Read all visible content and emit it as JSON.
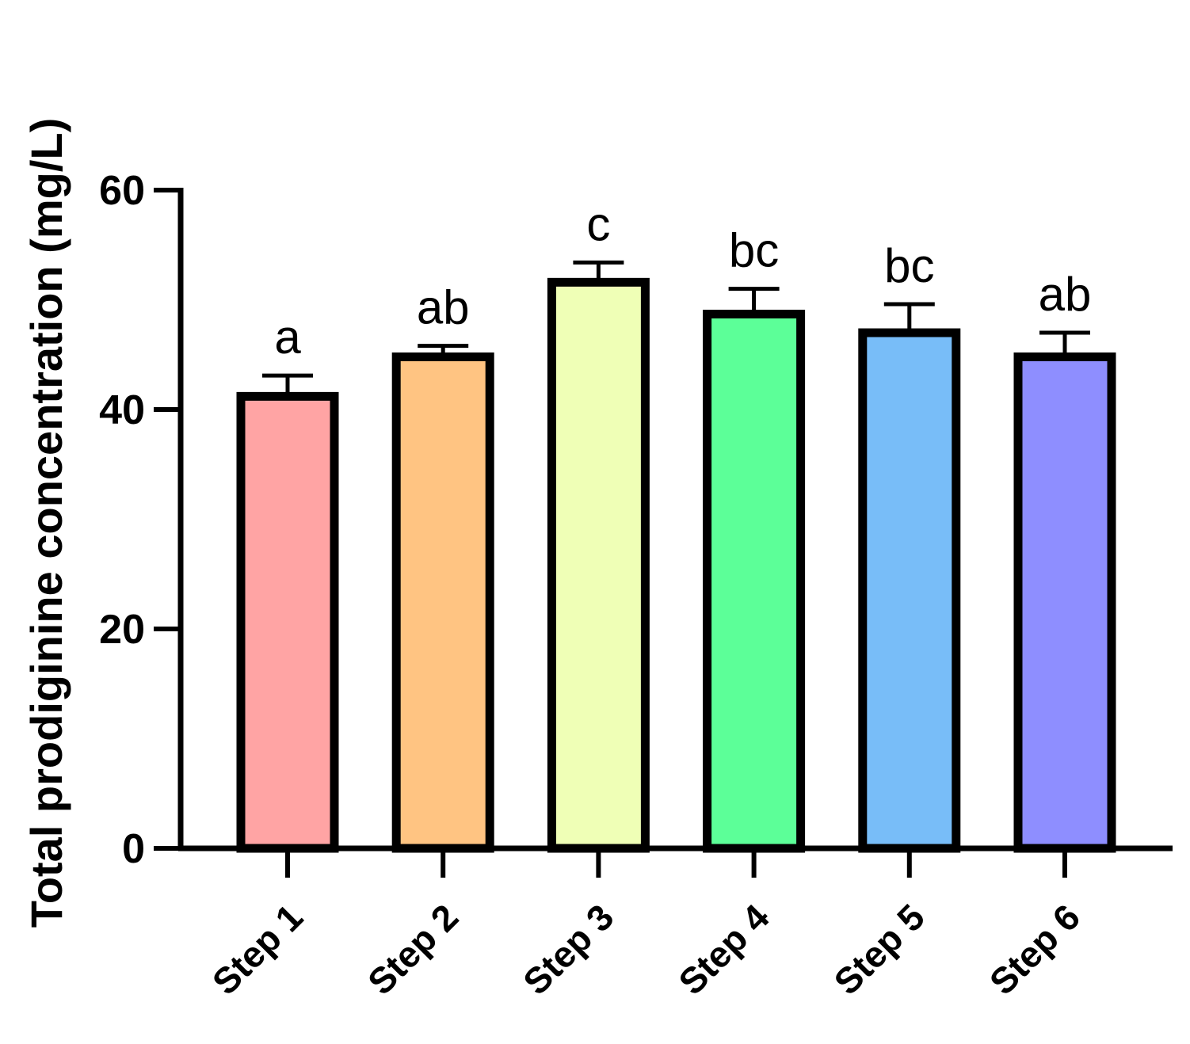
{
  "chart_data": {
    "type": "bar",
    "ylabel": "Total prodiginine concentration (mg/L)",
    "xlabel": "",
    "ylim": [
      0,
      60
    ],
    "yticks": [
      0,
      20,
      40,
      60
    ],
    "grid": false,
    "categories": [
      "Step 1",
      "Step 2",
      "Step 3",
      "Step 4",
      "Step 5",
      "Step 6"
    ],
    "values": [
      41.2,
      44.8,
      51.6,
      48.7,
      47.0,
      44.8
    ],
    "errors": [
      1.9,
      1.0,
      1.8,
      2.3,
      2.6,
      2.2
    ],
    "significance": [
      "a",
      "ab",
      "c",
      "bc",
      "bc",
      "ab"
    ],
    "colors": [
      "#FFA4A4",
      "#FFC482",
      "#EFFFB6",
      "#5CFF98",
      "#78BDF8",
      "#8E8EFF"
    ]
  }
}
